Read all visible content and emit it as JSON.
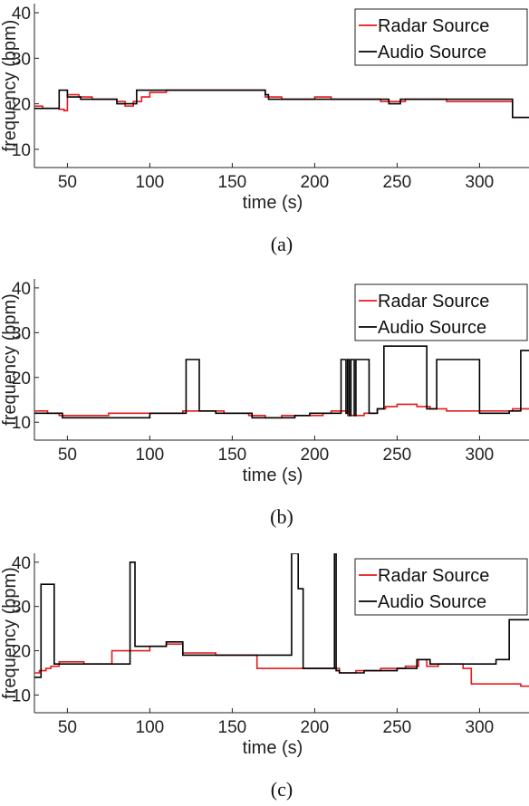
{
  "chart_data": [
    {
      "type": "line",
      "caption": "(a)",
      "xlabel": "time (s)",
      "ylabel": "frequency (bpm)",
      "xlim": [
        30,
        330
      ],
      "ylim": [
        6,
        42
      ],
      "xticks": [
        50,
        100,
        150,
        200,
        250,
        300
      ],
      "yticks": [
        10,
        20,
        30,
        40
      ],
      "legend_position": "top-right",
      "series": [
        {
          "name": "Radar Source",
          "color": "#e41a1c",
          "x": [
            30,
            35,
            45,
            48,
            50,
            57,
            65,
            75,
            80,
            85,
            90,
            95,
            100,
            110,
            125,
            150,
            165,
            170,
            180,
            190,
            200,
            210,
            220,
            230,
            240,
            250,
            255,
            270,
            280,
            300,
            320,
            330
          ],
          "y": [
            19.5,
            19,
            18.8,
            18.5,
            22,
            21.5,
            21,
            21,
            20.5,
            19.5,
            20.5,
            21.5,
            22.5,
            23,
            23,
            23,
            23,
            21.5,
            21,
            21,
            21.5,
            21,
            21,
            21,
            20.5,
            20.5,
            21,
            21,
            20.5,
            20.5,
            17,
            17
          ]
        },
        {
          "name": "Audio Source",
          "color": "#000000",
          "x": [
            30,
            35,
            45,
            50,
            58,
            65,
            75,
            80,
            88,
            92,
            100,
            130,
            150,
            170,
            172,
            200,
            230,
            245,
            252,
            260,
            300,
            320,
            330
          ],
          "y": [
            19,
            19,
            23,
            21.5,
            21,
            21,
            21,
            20,
            20,
            23,
            23,
            23,
            23,
            22,
            21,
            21,
            21,
            20,
            21,
            21,
            21,
            17,
            17
          ]
        }
      ]
    },
    {
      "type": "line",
      "caption": "(b)",
      "xlabel": "time (s)",
      "ylabel": "frequency (bpm)",
      "xlim": [
        30,
        330
      ],
      "ylim": [
        6,
        42
      ],
      "xticks": [
        50,
        100,
        150,
        200,
        250,
        300
      ],
      "yticks": [
        10,
        20,
        30,
        40
      ],
      "legend_position": "top-right",
      "series": [
        {
          "name": "Radar Source",
          "color": "#e41a1c",
          "x": [
            30,
            38,
            45,
            60,
            75,
            90,
            110,
            120,
            130,
            145,
            160,
            170,
            180,
            195,
            205,
            210,
            220,
            230,
            238,
            243,
            250,
            262,
            270,
            280,
            300,
            320,
            330
          ],
          "y": [
            12.5,
            12,
            11.5,
            11.5,
            12,
            12,
            12,
            12.5,
            12.5,
            12,
            11.5,
            11,
            11.5,
            11.5,
            12,
            12.5,
            11.5,
            12,
            13,
            13.5,
            14,
            13.5,
            13,
            12.5,
            12.5,
            13,
            13
          ]
        },
        {
          "name": "Audio Source",
          "color": "#000000",
          "x": [
            30,
            38,
            47,
            90,
            100,
            120,
            122,
            128,
            130,
            140,
            162,
            172,
            188,
            197,
            210,
            216,
            219,
            220,
            221,
            222,
            224,
            225,
            233,
            238,
            242,
            258,
            268,
            274,
            300,
            318,
            325,
            330
          ],
          "y": [
            12,
            12,
            11,
            11,
            12,
            12,
            24,
            24,
            12.5,
            12,
            11,
            11,
            11.5,
            12,
            12,
            24,
            12,
            24,
            11.5,
            24,
            11.5,
            24,
            12,
            13,
            27,
            27,
            13,
            24,
            12,
            12.5,
            26,
            26
          ]
        }
      ]
    },
    {
      "type": "line",
      "caption": "(c)",
      "xlabel": "time (s)",
      "ylabel": "frequency (bpm)",
      "xlim": [
        30,
        330
      ],
      "ylim": [
        6,
        42
      ],
      "xticks": [
        50,
        100,
        150,
        200,
        250,
        300
      ],
      "yticks": [
        10,
        20,
        30,
        40
      ],
      "legend_position": "top-right",
      "series": [
        {
          "name": "Radar Source",
          "color": "#e41a1c",
          "x": [
            30,
            33,
            37,
            40,
            45,
            60,
            77,
            95,
            100,
            110,
            120,
            140,
            165,
            185,
            200,
            215,
            225,
            240,
            255,
            263,
            268,
            275,
            290,
            295,
            320,
            325,
            330
          ],
          "y": [
            15,
            15.5,
            16,
            16.5,
            17.5,
            17,
            20,
            20,
            21,
            21.5,
            19.5,
            19,
            16,
            16,
            16,
            15,
            15.5,
            16,
            16.5,
            18,
            16.5,
            17,
            16,
            12.5,
            12.5,
            12,
            12
          ]
        },
        {
          "name": "Audio Source",
          "color": "#000000",
          "x": [
            30,
            32,
            34,
            42,
            60,
            75,
            88,
            91,
            100,
            110,
            120,
            140,
            165,
            185,
            186,
            188,
            190,
            193,
            195,
            212,
            213,
            215,
            230,
            250,
            262,
            270,
            280,
            295,
            310,
            318,
            330
          ],
          "y": [
            14,
            14,
            35,
            17,
            17,
            17,
            40,
            21,
            21,
            22,
            19,
            19,
            19,
            19,
            42,
            42,
            34,
            16,
            16,
            42,
            15.5,
            15,
            15.5,
            16,
            18,
            17,
            17,
            17,
            18,
            27,
            27
          ]
        }
      ]
    }
  ]
}
